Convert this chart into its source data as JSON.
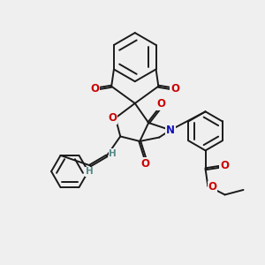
{
  "bg_color": "#efefef",
  "bond_color": "#1a1a1a",
  "bond_width": 1.4,
  "atom_colors": {
    "O": "#cc0000",
    "N": "#1111bb",
    "H": "#558888",
    "C": "#1a1a1a"
  },
  "font_size_atom": 8.5,
  "font_size_H": 7.5
}
